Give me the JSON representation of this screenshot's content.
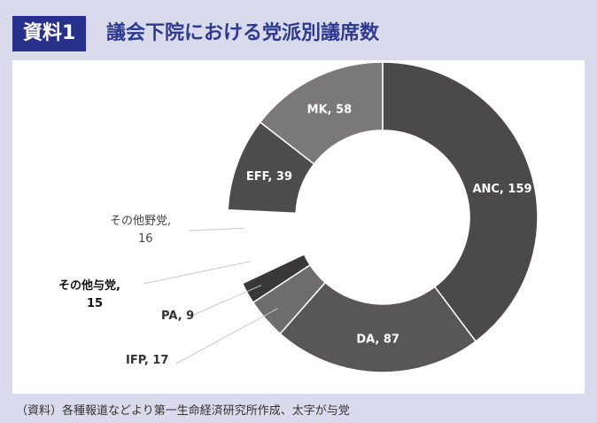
{
  "header": {
    "badge": "資料1",
    "title": "議会下院における党派別議席数"
  },
  "footer": {
    "source": "（資料）各種報道などより第一生命経済研究所作成、太字が与党"
  },
  "chart_data": {
    "type": "donut",
    "title": "議会下院における党派別議席数",
    "total": 400,
    "slices": [
      {
        "label": "ANC",
        "value": 159,
        "display": "ANC, 159",
        "color": "#4b4949",
        "label_color": "#ffffff",
        "ruling": true
      },
      {
        "label": "DA",
        "value": 87,
        "display": "DA, 87",
        "color": "#585656",
        "label_color": "#ffffff",
        "ruling": true
      },
      {
        "label": "IFP",
        "value": 17,
        "display": "IFP, 17",
        "color": "#6e6c6c",
        "label_color": "#333333",
        "ruling": true
      },
      {
        "label": "PA",
        "value": 9,
        "display": "PA, 9",
        "color": "#3a3838",
        "label_color": "#333333",
        "ruling": true
      },
      {
        "label": "その他与党",
        "value": 15,
        "display_line1": "その他与党,",
        "display_line2": "15",
        "color": "#ffffff",
        "label_color": "#111111",
        "ruling": true
      },
      {
        "label": "その他野党",
        "value": 16,
        "display_line1": "その他野党,",
        "display_line2": "16",
        "color": "#ffffff",
        "label_color": "#444444",
        "ruling": false
      },
      {
        "label": "EFF",
        "value": 39,
        "display": "EFF, 39",
        "color": "#4e4c4c",
        "label_color": "#ffffff",
        "ruling": false
      },
      {
        "label": "MK",
        "value": 58,
        "display": "MK, 58",
        "color": "#7a7878",
        "label_color": "#ffffff",
        "ruling": false
      }
    ]
  }
}
